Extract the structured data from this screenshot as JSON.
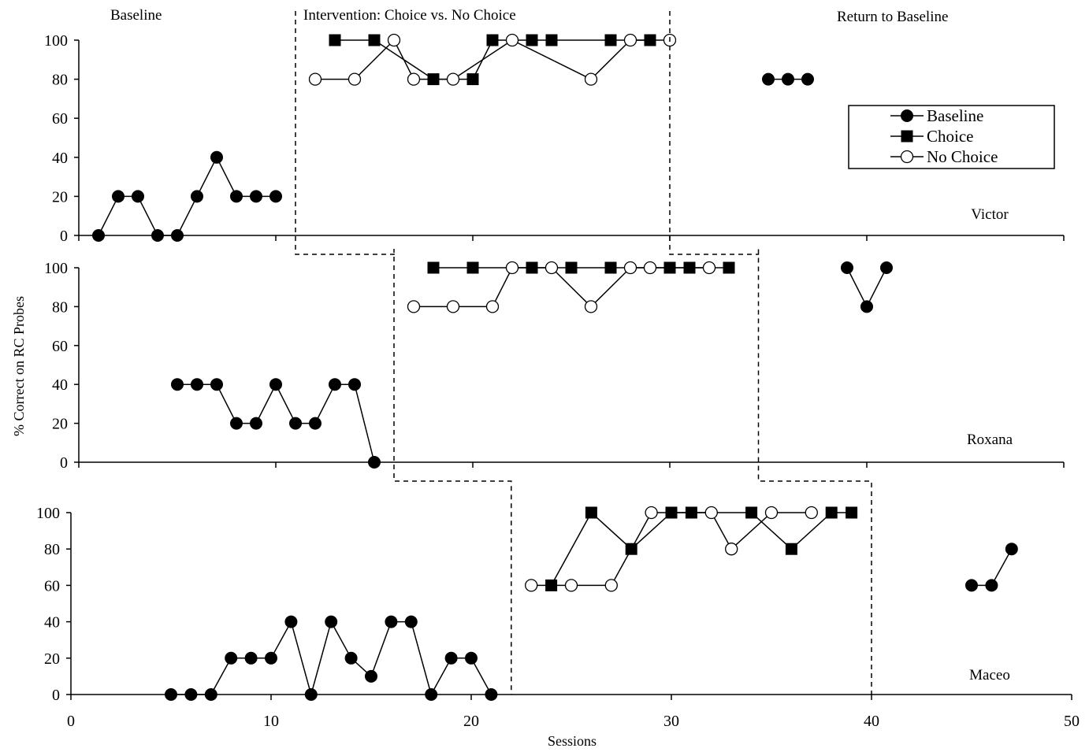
{
  "chart_data": {
    "type": "scatter",
    "title": "",
    "xlabel": "Sessions",
    "ylabel": "% Correct on RC Probes",
    "xlim": [
      0,
      50
    ],
    "ylim": [
      0,
      100
    ],
    "x_ticks": [
      "0",
      "10",
      "20",
      "30",
      "40",
      "50"
    ],
    "y_ticks": [
      "0",
      "20",
      "40",
      "60",
      "80",
      "100"
    ],
    "phase_labels": {
      "baseline": "Baseline",
      "intervention": "Intervention:  Choice vs. No Choice",
      "return": "Return to Baseline"
    },
    "legend": {
      "position": "top-right",
      "entries": [
        {
          "name": "Baseline",
          "marker": "filled-circle"
        },
        {
          "name": "Choice",
          "marker": "filled-square"
        },
        {
          "name": "No Choice",
          "marker": "open-circle"
        }
      ]
    },
    "panels": [
      {
        "name": "Victor",
        "series": {
          "baseline": [
            [
              1,
              0
            ],
            [
              2,
              20
            ],
            [
              3,
              20
            ],
            [
              4,
              0
            ],
            [
              5,
              0
            ],
            [
              6,
              20
            ],
            [
              7,
              40
            ],
            [
              8,
              20
            ],
            [
              9,
              20
            ],
            [
              10,
              20
            ]
          ],
          "choice": [
            [
              13,
              100
            ],
            [
              15,
              100
            ],
            [
              18,
              80
            ],
            [
              20,
              80
            ],
            [
              21,
              100
            ],
            [
              23,
              100
            ],
            [
              24,
              100
            ],
            [
              27,
              100
            ],
            [
              29,
              100
            ]
          ],
          "no_choice": [
            [
              12,
              80
            ],
            [
              14,
              80
            ],
            [
              16,
              100
            ],
            [
              17,
              80
            ],
            [
              19,
              80
            ],
            [
              22,
              100
            ],
            [
              26,
              80
            ],
            [
              28,
              100
            ],
            [
              30,
              100
            ]
          ],
          "return": [
            [
              35,
              80
            ],
            [
              36,
              80
            ],
            [
              37,
              80
            ]
          ]
        },
        "phase_lines_x": [
          11,
          30
        ]
      },
      {
        "name": "Roxana",
        "series": {
          "baseline": [
            [
              5,
              40
            ],
            [
              6,
              40
            ],
            [
              7,
              40
            ],
            [
              8,
              20
            ],
            [
              9,
              20
            ],
            [
              10,
              40
            ],
            [
              11,
              20
            ],
            [
              12,
              20
            ],
            [
              13,
              40
            ],
            [
              14,
              40
            ],
            [
              15,
              0
            ]
          ],
          "choice": [
            [
              18,
              100
            ],
            [
              20,
              100
            ],
            [
              23,
              100
            ],
            [
              25,
              100
            ],
            [
              27,
              100
            ],
            [
              30,
              100
            ],
            [
              31,
              100
            ],
            [
              33,
              100
            ]
          ],
          "no_choice": [
            [
              17,
              80
            ],
            [
              19,
              80
            ],
            [
              21,
              80
            ],
            [
              22,
              100
            ],
            [
              24,
              100
            ],
            [
              26,
              80
            ],
            [
              28,
              100
            ],
            [
              29,
              100
            ],
            [
              32,
              100
            ]
          ],
          "return": [
            [
              39,
              100
            ],
            [
              40,
              80
            ],
            [
              41,
              100
            ]
          ]
        },
        "phase_lines_x": [
          16,
          34.5
        ]
      },
      {
        "name": "Maceo",
        "series": {
          "baseline": [
            [
              5,
              0
            ],
            [
              6,
              0
            ],
            [
              7,
              0
            ],
            [
              8,
              20
            ],
            [
              9,
              20
            ],
            [
              10,
              20
            ],
            [
              11,
              40
            ],
            [
              12,
              0
            ],
            [
              13,
              40
            ],
            [
              14,
              20
            ],
            [
              15,
              10
            ],
            [
              16,
              40
            ],
            [
              17,
              40
            ],
            [
              18,
              0
            ],
            [
              19,
              20
            ],
            [
              20,
              20
            ],
            [
              21,
              0
            ]
          ],
          "choice": [
            [
              24,
              60
            ],
            [
              26,
              100
            ],
            [
              28,
              80
            ],
            [
              30,
              100
            ],
            [
              31,
              100
            ],
            [
              34,
              100
            ],
            [
              36,
              80
            ],
            [
              38,
              100
            ],
            [
              39,
              100
            ]
          ],
          "no_choice": [
            [
              23,
              60
            ],
            [
              25,
              60
            ],
            [
              27,
              60
            ],
            [
              29,
              100
            ],
            [
              32,
              100
            ],
            [
              33,
              80
            ],
            [
              35,
              100
            ],
            [
              37,
              100
            ]
          ],
          "return": [
            [
              45,
              60
            ],
            [
              46,
              60
            ],
            [
              47,
              80
            ]
          ]
        },
        "phase_lines_x": [
          22,
          40
        ]
      }
    ]
  }
}
